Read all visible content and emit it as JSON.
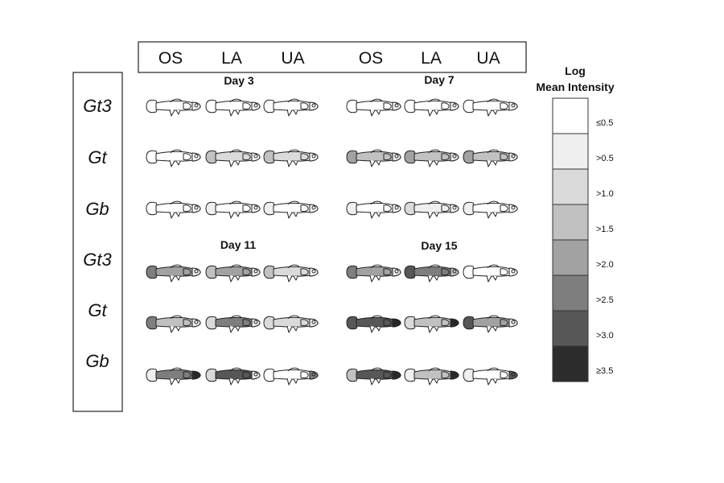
{
  "columns": [
    "OS",
    "LA",
    "UA",
    "OS",
    "LA",
    "UA"
  ],
  "rows": [
    "Gt3",
    "Gt",
    "Gb",
    "Gt3",
    "Gt",
    "Gb"
  ],
  "panels": [
    {
      "day": "Day 3"
    },
    {
      "day": "Day 7"
    },
    {
      "day": "Day 11"
    },
    {
      "day": "Day 15"
    }
  ],
  "legend": {
    "title_line1": "Log",
    "title_line2": "Mean Intensity",
    "levels": [
      "≤0.5",
      ">0.5",
      ">1.0",
      ">1.5",
      ">2.0",
      ">2.5",
      ">3.0",
      "≥3.5"
    ],
    "colors": [
      "#ffffff",
      "#efefef",
      "#dadada",
      "#c1c1c1",
      "#a2a2a2",
      "#7e7e7e",
      "#575757",
      "#2c2c2c"
    ]
  }
}
